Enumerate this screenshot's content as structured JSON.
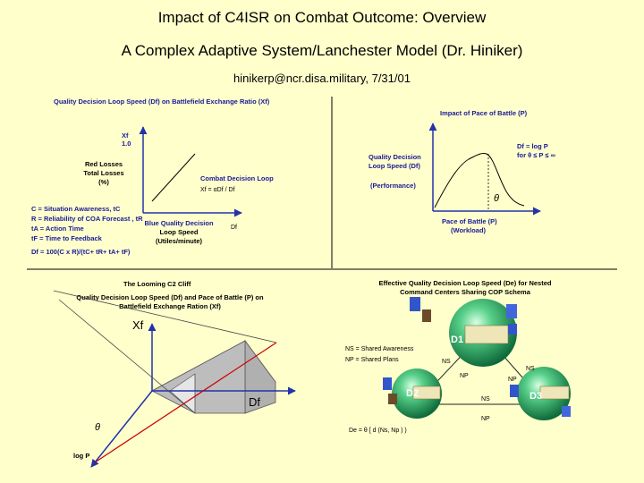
{
  "header": {
    "title": "Impact of C4ISR on Combat Outcome: Overview",
    "subtitle": "A Complex Adaptive System/Lanchester Model (Dr. Hiniker)",
    "byline": "hinikerp@ncr.disa.military, 7/31/01"
  },
  "panel_tl": {
    "title": "Quality Decision Loop Speed (Df) on Battlefield Exchange Ratio (Xf)",
    "y_symbol": "Xf",
    "y_tick": "1.0",
    "y_label_1": "Red Losses",
    "y_label_2": "Total Losses",
    "y_label_3": "(%)",
    "curve_label": "Combat Decision Loop",
    "curve_formula": "Xf = αDf / Df",
    "x_label_1": "Blue Quality Decision",
    "x_label_2": "Loop Speed",
    "x_label_3": "(Utiles/minute)",
    "x_symbol": "Df",
    "defs": [
      "C = Situation Awareness, tC",
      "R = Reliability of COA Forecast , tR",
      "tA = Action Time",
      "tF = Time to Feedback"
    ],
    "formula": "Df = 100(C x R)/(tC+ tR+ tA+ tF)"
  },
  "panel_tr": {
    "title": "Impact of Pace of Battle (P)",
    "y_label_1": "Quality Decision",
    "y_label_2": "Loop Speed (Df)",
    "y_label_3": "(Performance)",
    "eq_1": "Df = log P",
    "eq_2": "for  θ ≤ P ≤ ∞",
    "theta": "θ",
    "x_label_1": "Pace of Battle (P)",
    "x_label_2": "(Workload)"
  },
  "panel_bl": {
    "title": "The Looming C2 Cliff",
    "subtitle_1": "Quality Decision Loop Speed (Df) and Pace of Battle (P) on",
    "subtitle_2": "Battlefield Exchange Ration (Xf)",
    "axis_x": "Xf",
    "axis_df": "Df",
    "theta": "θ",
    "axis_logp": "log P"
  },
  "panel_br": {
    "title_1": "Effective Quality Decision Loop Speed (De) for Nested",
    "title_2": "Command Centers Sharing COP Schema",
    "legend_1": "NS = Shared Awareness",
    "legend_2": "NP = Shared Plans",
    "nodes": [
      "D1",
      "D2",
      "D3"
    ],
    "edge_labels": [
      "NS",
      "NP",
      "NS",
      "NP",
      "NS",
      "NP"
    ],
    "formula": "De = θ [ d (Ns, Np ) )"
  },
  "colors": {
    "background": "#ffffcc",
    "axis_blue": "#2233aa",
    "cliff_red": "#cc0000",
    "sphere_green": "#33b866",
    "plane_gray": "#bdbdbd"
  }
}
